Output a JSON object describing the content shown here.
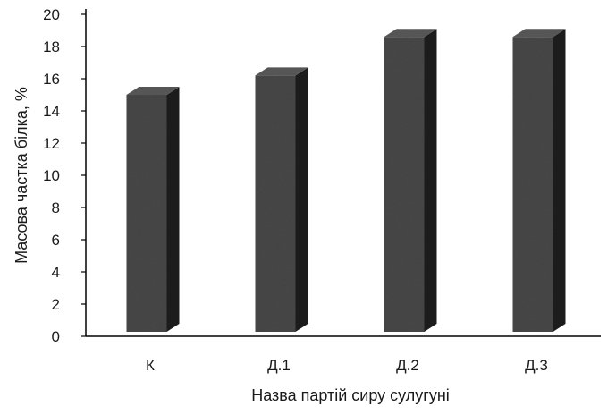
{
  "chart_data": {
    "type": "bar",
    "style": "3d-column",
    "categories": [
      "К",
      "Д.1",
      "Д.2",
      "Д.3"
    ],
    "values": [
      15.0,
      16.2,
      18.6,
      18.6
    ],
    "title": "",
    "xlabel": "Назва партій сиру  сулугуні",
    "ylabel": "Масова частка білка, %",
    "ylim": [
      0,
      20
    ],
    "yticks": [
      "0",
      "2",
      "4",
      "6",
      "8",
      "10",
      "12",
      "14",
      "16",
      "18",
      "20"
    ],
    "grid": false,
    "legend": "none",
    "colors": {
      "bar_front": "#4a4a4a",
      "bar_side": "#1e1e1e",
      "bar_top": "#5c5c5c",
      "axis": "#000000"
    }
  }
}
